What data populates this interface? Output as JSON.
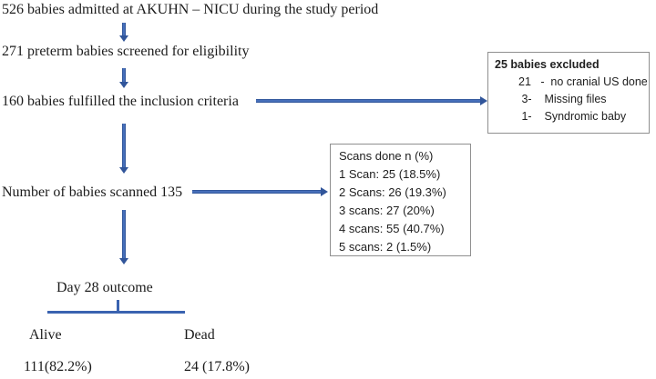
{
  "figure": {
    "steps": {
      "step1": "526 babies admitted at AKUHN – NICU during the study period",
      "step2": "271 preterm babies screened for eligibility",
      "step3": "160 babies fulfilled the inclusion criteria",
      "step4": "Number of babies scanned 135"
    },
    "excluded_box": {
      "title": "25 babies excluded",
      "items": [
        "21   -  no cranial US done",
        " 3-    Missing files",
        " 1-    Syndromic baby"
      ]
    },
    "scans_box": {
      "title": "Scans done n (%)",
      "items": [
        "1 Scan: 25 (18.5%)",
        "2 Scans: 26 (19.3%)",
        "3 scans: 27 (20%)",
        "4 scans: 55 (40.7%)",
        "5 scans: 2 (1.5%)"
      ]
    },
    "outcome": {
      "label": "Day 28 outcome",
      "alive_label": "Alive",
      "dead_label": "Dead",
      "alive_value": "111(82.2%)",
      "dead_value": "24 (17.8%)"
    },
    "colors": {
      "arrow_blue": "#31559a",
      "connector_blue": "#3a63b0",
      "box_border_gray": "#8f8f8f",
      "text_black": "#1c1c1c"
    }
  }
}
